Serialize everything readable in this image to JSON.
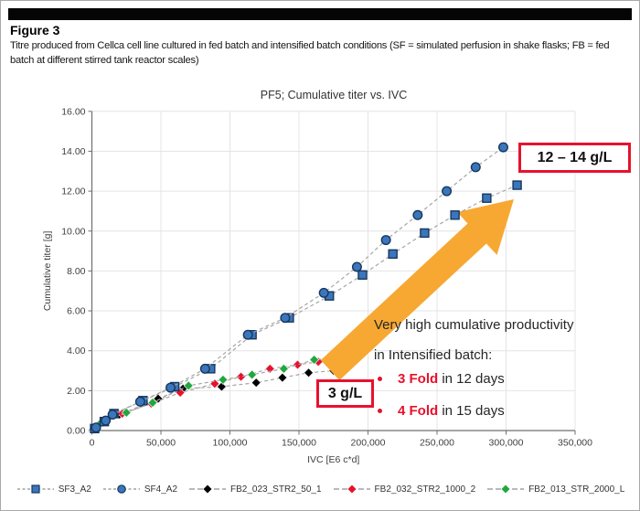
{
  "figure": {
    "label": "Figure 3",
    "caption": "Titre produced from Cellca cell line cultured in fed batch and intensified batch conditions (SF = simulated perfusion in shake flasks; FB = fed batch at different stirred tank reactor scales)"
  },
  "chart_data": {
    "type": "scatter",
    "title": "PF5; Cumulative titer vs. IVC",
    "xlabel": "IVC [E6 c*d]",
    "ylabel": "Cumulative titer [g]",
    "xlim": [
      0,
      350000
    ],
    "ylim": [
      0,
      16
    ],
    "x_ticks": [
      "0",
      "50,000",
      "100,000",
      "150,000",
      "200,000",
      "250,000",
      "300,000",
      "350,000"
    ],
    "y_ticks": [
      "0.00",
      "2.00",
      "4.00",
      "6.00",
      "8.00",
      "10.00",
      "12.00",
      "14.00",
      "16.00"
    ],
    "grid": true,
    "legend_position": "bottom",
    "line_style": "dashed",
    "colors": {
      "grid": "#e4e4e4",
      "axis": "#6f6f6f",
      "dash_line": "#a6a6a6",
      "tick_text": "#3f3f3f"
    },
    "series": [
      {
        "name": "SF3_A2",
        "marker": "square",
        "color": "#3b76bc",
        "edge": "#17375e",
        "points": [
          [
            2000,
            0.1
          ],
          [
            9000,
            0.45
          ],
          [
            16000,
            0.85
          ],
          [
            37000,
            1.5
          ],
          [
            60000,
            2.2
          ],
          [
            86000,
            3.1
          ],
          [
            116000,
            4.8
          ],
          [
            143000,
            5.65
          ],
          [
            172000,
            6.75
          ],
          [
            196000,
            7.8
          ],
          [
            218000,
            8.85
          ],
          [
            241000,
            9.9
          ],
          [
            263000,
            10.8
          ],
          [
            286000,
            11.65
          ],
          [
            308000,
            12.3
          ]
        ]
      },
      {
        "name": "SF4_A2",
        "marker": "circle",
        "color": "#3b76bc",
        "edge": "#17375e",
        "points": [
          [
            3000,
            0.15
          ],
          [
            10000,
            0.5
          ],
          [
            15000,
            0.8
          ],
          [
            35000,
            1.45
          ],
          [
            57000,
            2.15
          ],
          [
            82000,
            3.1
          ],
          [
            113000,
            4.8
          ],
          [
            140000,
            5.65
          ],
          [
            168000,
            6.9
          ],
          [
            192000,
            8.2
          ],
          [
            213000,
            9.55
          ],
          [
            236000,
            10.8
          ],
          [
            257000,
            12.0
          ],
          [
            278000,
            13.2
          ],
          [
            298000,
            14.2
          ]
        ]
      },
      {
        "name": "FB2_023_STR2_50_1",
        "marker": "diamond",
        "color": "#000000",
        "edge": "#f5f5f5",
        "points": [
          [
            2000,
            0.08
          ],
          [
            8000,
            0.4
          ],
          [
            20000,
            0.8
          ],
          [
            48000,
            1.6
          ],
          [
            66000,
            2.1
          ],
          [
            94000,
            2.2
          ],
          [
            119000,
            2.4
          ],
          [
            138000,
            2.65
          ],
          [
            157000,
            2.9
          ],
          [
            175000,
            3.0
          ]
        ]
      },
      {
        "name": "FB2_032_STR2_1000_2",
        "marker": "diamond",
        "color": "#e8112d",
        "edge": "#f5f5f5",
        "points": [
          [
            3000,
            0.12
          ],
          [
            10000,
            0.47
          ],
          [
            22000,
            0.85
          ],
          [
            43000,
            1.35
          ],
          [
            64000,
            1.9
          ],
          [
            89000,
            2.35
          ],
          [
            108000,
            2.7
          ],
          [
            129000,
            3.1
          ],
          [
            149000,
            3.3
          ],
          [
            164000,
            3.45
          ]
        ]
      },
      {
        "name": "FB2_013_STR_2000_L",
        "marker": "diamond",
        "color": "#21a73e",
        "edge": "#f5f5f5",
        "points": [
          [
            1000,
            0.05
          ],
          [
            6000,
            0.35
          ],
          [
            11000,
            0.5
          ],
          [
            25000,
            0.9
          ],
          [
            44000,
            1.4
          ],
          [
            70000,
            2.25
          ],
          [
            95000,
            2.55
          ],
          [
            116000,
            2.8
          ],
          [
            139000,
            3.1
          ],
          [
            161000,
            3.55
          ],
          [
            178000,
            3.65
          ]
        ]
      }
    ],
    "annotations": {
      "box_high": "12 – 14 g/L",
      "box_low": "3 g/L",
      "note_line1": "Very high cumulative productivity",
      "note_line2": "in Intensified batch:",
      "bullets": [
        {
          "highlight": "3 Fold",
          "rest": " in 12 days"
        },
        {
          "highlight": "4 Fold",
          "rest": " in 15 days"
        }
      ],
      "arrow_color": "#f7a832",
      "accent_red": "#e8112d"
    }
  }
}
